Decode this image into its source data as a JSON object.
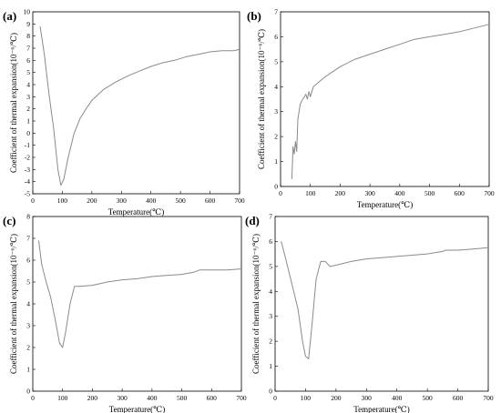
{
  "chart_data": [
    {
      "panel": "(a)",
      "type": "line",
      "xlabel": "Temperature(℃)",
      "ylabel": "Coefficient of thermal expansion(10⁻⁶/℃)",
      "xlim": [
        0,
        700
      ],
      "ylim": [
        -5,
        10
      ],
      "xticks": [
        0,
        100,
        200,
        300,
        400,
        500,
        600,
        700
      ],
      "yticks": [
        -5,
        -4,
        -3,
        -2,
        -1,
        0,
        1,
        2,
        3,
        4,
        5,
        6,
        7,
        8,
        9,
        10
      ],
      "grid": false,
      "series": [
        {
          "x": [
            25,
            40,
            55,
            70,
            85,
            95,
            105,
            120,
            140,
            160,
            180,
            200,
            240,
            280,
            320,
            360,
            400,
            440,
            480,
            520,
            560,
            600,
            640,
            680,
            700
          ],
          "y": [
            8.8,
            6.3,
            3.2,
            0.5,
            -3.0,
            -4.3,
            -3.8,
            -2.0,
            0.0,
            1.2,
            2.0,
            2.7,
            3.6,
            4.2,
            4.7,
            5.1,
            5.5,
            5.8,
            6.0,
            6.3,
            6.5,
            6.7,
            6.8,
            6.8,
            6.9
          ]
        }
      ]
    },
    {
      "panel": "(b)",
      "type": "line",
      "xlabel": "Temperature(℃)",
      "ylabel": "Coefficient of thermal expansion(10⁻⁶/℃)",
      "xlim": [
        0,
        700
      ],
      "ylim": [
        0,
        7
      ],
      "xticks": [
        0,
        100,
        200,
        300,
        400,
        500,
        600,
        700
      ],
      "yticks": [
        0,
        1,
        2,
        3,
        4,
        5,
        6,
        7
      ],
      "grid": false,
      "series": [
        {
          "x": [
            38,
            42,
            46,
            50,
            54,
            58,
            62,
            66,
            70,
            75,
            80,
            85,
            90,
            95,
            100,
            110,
            120,
            130,
            150,
            175,
            200,
            250,
            300,
            350,
            400,
            450,
            500,
            550,
            600,
            650,
            700
          ],
          "y": [
            0.3,
            1.6,
            1.3,
            1.8,
            1.4,
            2.7,
            3.0,
            3.3,
            3.4,
            3.5,
            3.6,
            3.7,
            3.5,
            3.8,
            3.6,
            4.0,
            4.1,
            4.2,
            4.4,
            4.6,
            4.8,
            5.1,
            5.3,
            5.5,
            5.7,
            5.9,
            6.0,
            6.1,
            6.2,
            6.35,
            6.5
          ]
        }
      ]
    },
    {
      "panel": "(c)",
      "type": "line",
      "xlabel": "Temperature(℃)",
      "ylabel": "Coefficient of thermal expansion(10⁻⁶/℃)",
      "xlim": [
        0,
        700
      ],
      "ylim": [
        0,
        8
      ],
      "xticks": [
        0,
        100,
        200,
        300,
        400,
        500,
        600,
        700
      ],
      "yticks": [
        0,
        1,
        2,
        3,
        4,
        5,
        6,
        7,
        8
      ],
      "grid": false,
      "series": [
        {
          "x": [
            20,
            30,
            45,
            60,
            75,
            90,
            100,
            110,
            125,
            140,
            160,
            200,
            250,
            300,
            350,
            400,
            450,
            500,
            540,
            560,
            600,
            650,
            700
          ],
          "y": [
            6.9,
            5.8,
            5.0,
            4.3,
            3.3,
            2.2,
            2.0,
            2.7,
            4.0,
            4.8,
            4.8,
            4.85,
            5.0,
            5.1,
            5.15,
            5.25,
            5.3,
            5.35,
            5.45,
            5.55,
            5.55,
            5.55,
            5.6
          ]
        }
      ]
    },
    {
      "panel": "(d)",
      "type": "line",
      "xlabel": "Temperature(℃)",
      "ylabel": "Coefficient of thermal expansion(10⁻⁶/℃)",
      "xlim": [
        0,
        700
      ],
      "ylim": [
        0,
        7
      ],
      "xticks": [
        0,
        100,
        200,
        300,
        400,
        500,
        600,
        700
      ],
      "yticks": [
        0,
        1,
        2,
        3,
        4,
        5,
        6,
        7
      ],
      "grid": false,
      "series": [
        {
          "x": [
            20,
            35,
            55,
            75,
            90,
            100,
            110,
            120,
            135,
            150,
            165,
            180,
            200,
            250,
            300,
            350,
            400,
            450,
            500,
            550,
            560,
            600,
            650,
            700
          ],
          "y": [
            6.0,
            5.3,
            4.3,
            3.3,
            2.0,
            1.4,
            1.3,
            2.5,
            4.5,
            5.2,
            5.2,
            5.0,
            5.05,
            5.2,
            5.3,
            5.35,
            5.4,
            5.45,
            5.5,
            5.6,
            5.65,
            5.65,
            5.7,
            5.75
          ]
        }
      ]
    }
  ]
}
